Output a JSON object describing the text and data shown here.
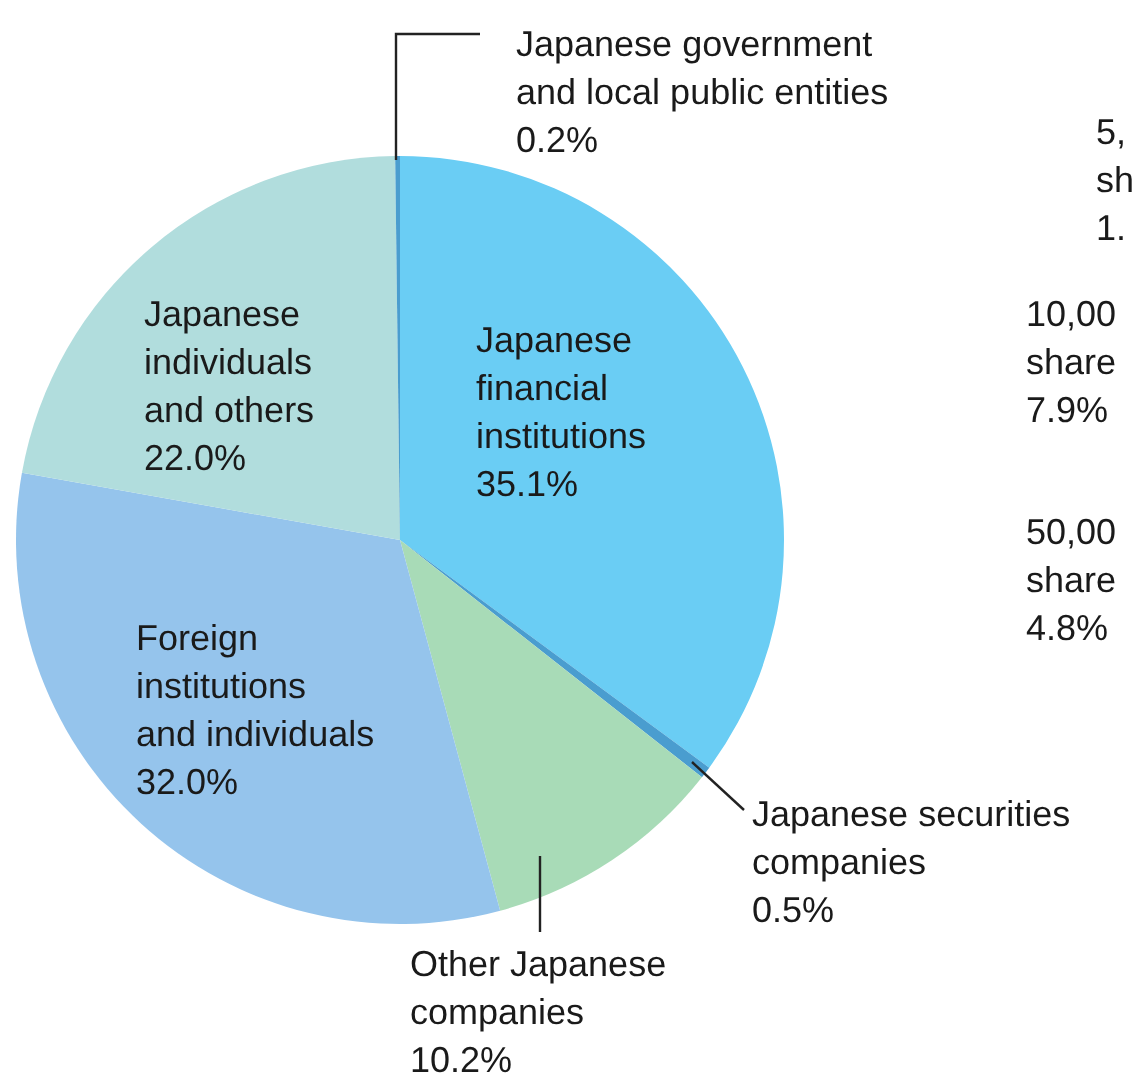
{
  "chart_data": {
    "type": "pie",
    "categories": [
      "Japanese financial institutions",
      "Japanese securities companies",
      "Other Japanese companies",
      "Foreign institutions and individuals",
      "Japanese individuals and others",
      "Japanese government and local public entities"
    ],
    "values": [
      35.1,
      0.5,
      10.2,
      32.0,
      22.0,
      0.2
    ],
    "value_labels": [
      "35.1%",
      "0.5%",
      "10.2%",
      "32.0%",
      "22.0%",
      "0.2%"
    ],
    "colors": [
      "#6acdf4",
      "#4a9dcf",
      "#a8dbb7",
      "#95c4ec",
      "#b1dddd",
      "#4a9dcf"
    ],
    "annotations": [
      "5, sh 1.",
      "10,00 share 7.9%",
      "50,00 share 4.8%"
    ]
  }
}
